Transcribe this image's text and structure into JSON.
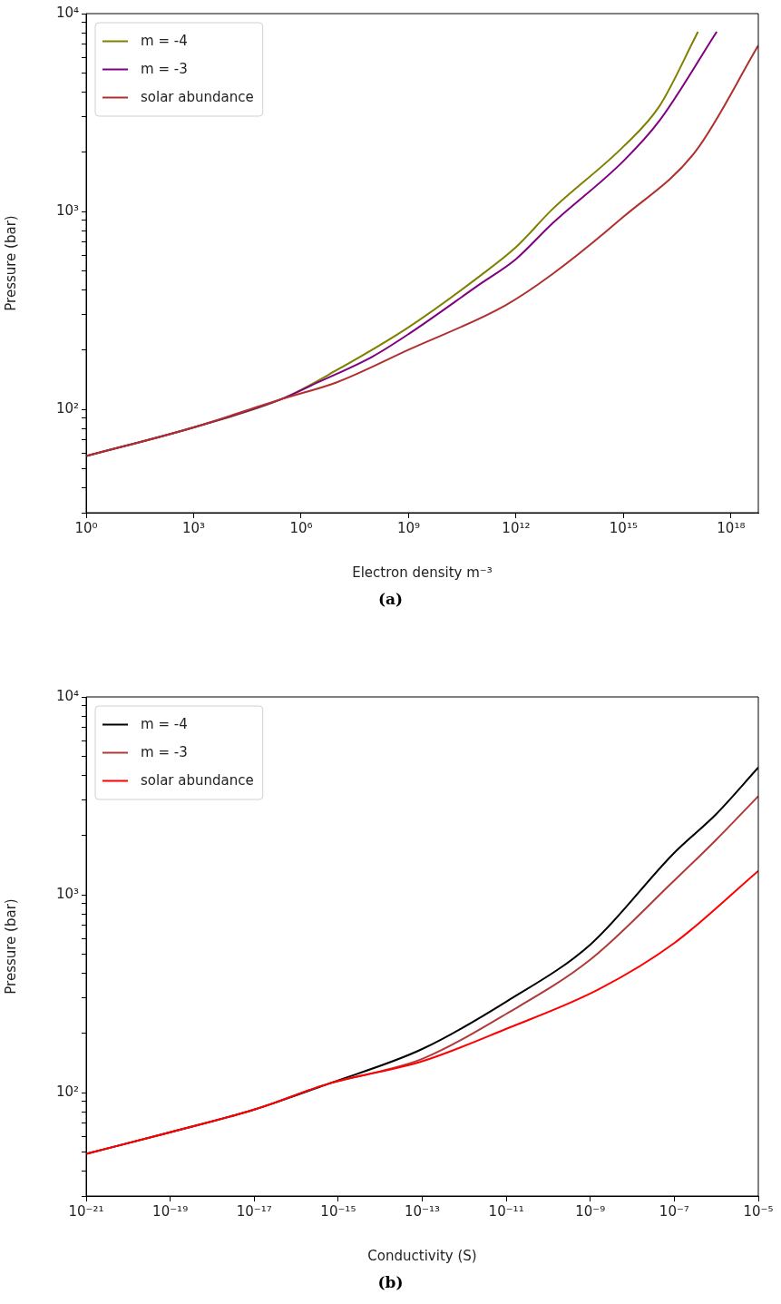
{
  "chart_data": [
    {
      "type": "line",
      "xlabel": "Electron density m⁻³",
      "ylabel": "Pressure (bar)",
      "annotations": [
        "(a)"
      ],
      "log": "xy",
      "legend": "top left",
      "xlim": [
        1,
        5.8e+18
      ],
      "ylim": [
        30,
        10000
      ],
      "xticks": [
        {
          "value": 1,
          "label": "10⁰"
        },
        {
          "value": 1000.0,
          "label": "10³"
        },
        {
          "value": 1000000.0,
          "label": "10⁶"
        },
        {
          "value": 1000000000.0,
          "label": "10⁹"
        },
        {
          "value": 1000000000000.0,
          "label": "10¹²"
        },
        {
          "value": 1000000000000000.0,
          "label": "10¹⁵"
        },
        {
          "value": 1e+18,
          "label": "10¹⁸"
        }
      ],
      "yticks": [
        {
          "value": 30,
          "label": null
        },
        {
          "value": 40,
          "label": null
        },
        {
          "value": 50,
          "label": null
        },
        {
          "value": 60,
          "label": null
        },
        {
          "value": 70,
          "label": null
        },
        {
          "value": 80,
          "label": null
        },
        {
          "value": 90,
          "label": null
        },
        {
          "value": 100,
          "label": "10²"
        },
        {
          "value": 200,
          "label": null
        },
        {
          "value": 300,
          "label": null
        },
        {
          "value": 400,
          "label": null
        },
        {
          "value": 500,
          "label": null
        },
        {
          "value": 600,
          "label": null
        },
        {
          "value": 700,
          "label": null
        },
        {
          "value": 800,
          "label": null
        },
        {
          "value": 900,
          "label": null
        },
        {
          "value": 1000,
          "label": "10³"
        },
        {
          "value": 2000,
          "label": null
        },
        {
          "value": 3000,
          "label": null
        },
        {
          "value": 4000,
          "label": null
        },
        {
          "value": 5000,
          "label": null
        },
        {
          "value": 6000,
          "label": null
        },
        {
          "value": 7000,
          "label": null
        },
        {
          "value": 8000,
          "label": null
        },
        {
          "value": 9000,
          "label": null
        },
        {
          "value": 10000,
          "label": "10⁴"
        }
      ],
      "series": [
        {
          "name": "m = -4",
          "color": "#808000",
          "x": [
            1,
            1000.0,
            300000.0,
            10000000.0,
            1000000000.0,
            100000000000.0,
            1000000000000.0,
            10000000000000.0,
            1000000000000000.0,
            1e+16,
            1.2e+17
          ],
          "values": [
            58,
            81,
            113,
            158,
            260,
            473,
            660,
            1020,
            2130,
            3400,
            8100
          ]
        },
        {
          "name": "m = -3",
          "color": "#800080",
          "x": [
            1,
            1000.0,
            300000.0,
            3000000.0,
            100000000.0,
            1000000000.0,
            100000000000.0,
            1000000000000.0,
            10000000000000.0,
            1000000000000000.0,
            1e+16,
            4e+17
          ],
          "values": [
            58,
            81,
            113,
            137,
            185,
            240,
            430,
            575,
            865,
            1800,
            2870,
            8100
          ]
        },
        {
          "name": "solar abundance",
          "color": "#b03030",
          "x": [
            1,
            1000.0,
            300000.0,
            10000000.0,
            1000000000.0,
            500000000000.0,
            10000000000000.0,
            1000000000000000.0,
            1e+17,
            5.8e+18
          ],
          "values": [
            58,
            81,
            113,
            137,
            200,
            335,
            480,
            940,
            2000,
            6900
          ]
        }
      ]
    },
    {
      "type": "line",
      "xlabel": "Conductivity (S)",
      "ylabel": "Pressure (bar)",
      "annotations": [
        "(b)"
      ],
      "log": "xy",
      "legend": "top left",
      "xlim": [
        1e-21,
        1e-05
      ],
      "ylim": [
        30,
        10000
      ],
      "xticks": [
        {
          "value": 1e-21,
          "label": "10⁻²¹"
        },
        {
          "value": 1e-19,
          "label": "10⁻¹⁹"
        },
        {
          "value": 1e-17,
          "label": "10⁻¹⁷"
        },
        {
          "value": 1e-15,
          "label": "10⁻¹⁵"
        },
        {
          "value": 1e-13,
          "label": "10⁻¹³"
        },
        {
          "value": 1e-11,
          "label": "10⁻¹¹"
        },
        {
          "value": 1e-09,
          "label": "10⁻⁹"
        },
        {
          "value": 1e-07,
          "label": "10⁻⁷"
        },
        {
          "value": 1e-05,
          "label": "10⁻⁵"
        }
      ],
      "yticks": [
        {
          "value": 30,
          "label": null
        },
        {
          "value": 40,
          "label": null
        },
        {
          "value": 50,
          "label": null
        },
        {
          "value": 60,
          "label": null
        },
        {
          "value": 70,
          "label": null
        },
        {
          "value": 80,
          "label": null
        },
        {
          "value": 90,
          "label": null
        },
        {
          "value": 100,
          "label": "10²"
        },
        {
          "value": 200,
          "label": null
        },
        {
          "value": 300,
          "label": null
        },
        {
          "value": 400,
          "label": null
        },
        {
          "value": 500,
          "label": null
        },
        {
          "value": 600,
          "label": null
        },
        {
          "value": 700,
          "label": null
        },
        {
          "value": 800,
          "label": null
        },
        {
          "value": 900,
          "label": null
        },
        {
          "value": 1000,
          "label": "10³"
        },
        {
          "value": 2000,
          "label": null
        },
        {
          "value": 3000,
          "label": null
        },
        {
          "value": 4000,
          "label": null
        },
        {
          "value": 5000,
          "label": null
        },
        {
          "value": 6000,
          "label": null
        },
        {
          "value": 7000,
          "label": null
        },
        {
          "value": 8000,
          "label": null
        },
        {
          "value": 9000,
          "label": null
        },
        {
          "value": 10000,
          "label": "10⁴"
        }
      ],
      "series": [
        {
          "name": "m = -4",
          "color": "#000000",
          "x": [
            1e-21,
            1e-19,
            1e-17,
            6e-16,
            1e-13,
            1e-11,
            1e-09,
            1e-07,
            1e-06,
            1e-05
          ],
          "values": [
            49,
            63,
            82,
            111,
            166,
            288,
            560,
            1630,
            2560,
            4400
          ]
        },
        {
          "name": "m = -3",
          "color": "#b03a3a",
          "x": [
            1e-21,
            1e-19,
            1e-17,
            6e-16,
            1e-14,
            1e-13,
            1e-11,
            1e-09,
            1e-07,
            1e-06,
            1e-05
          ],
          "values": [
            49,
            63,
            82,
            111,
            128,
            148,
            250,
            470,
            1180,
            1900,
            3150
          ]
        },
        {
          "name": "solar abundance",
          "color": "#ff0000",
          "x": [
            1e-21,
            1e-19,
            1e-17,
            6e-16,
            1e-13,
            1e-11,
            1.6e-09,
            1e-07,
            1e-05
          ],
          "values": [
            49,
            63,
            82,
            111,
            144,
            210,
            333,
            570,
            1320
          ]
        }
      ]
    }
  ]
}
